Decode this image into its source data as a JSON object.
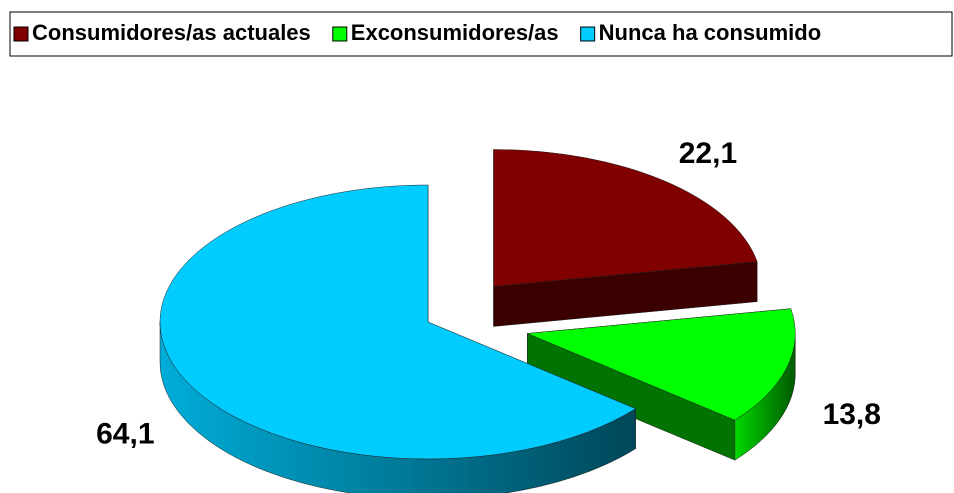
{
  "chart_data": {
    "type": "pie3d",
    "categories": [
      "Consumidores/as actuales",
      "Exconsumidores/as",
      "Nunca ha consumido"
    ],
    "values": [
      22.1,
      13.8,
      64.1
    ],
    "value_labels": [
      "22,1",
      "13,8",
      "64,1"
    ],
    "colors": [
      "#800000",
      "#00ff00",
      "#00ccff"
    ],
    "legend": "top"
  }
}
